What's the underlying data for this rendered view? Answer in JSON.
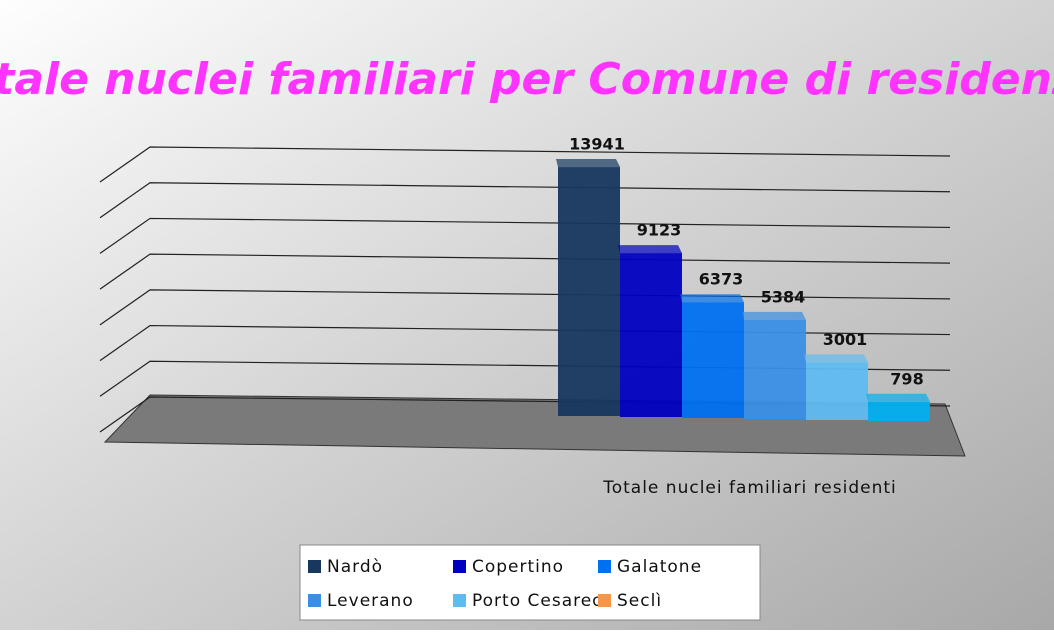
{
  "chart_data": {
    "type": "bar3d",
    "title": "Totale nuclei familiari per Comune di residenza",
    "categories": [
      "Totale nuclei familiari residenti"
    ],
    "series": [
      {
        "name": "Nardò",
        "color": "#17375e",
        "values": [
          13941
        ]
      },
      {
        "name": "Copertino",
        "color": "#0000c0",
        "values": [
          9123
        ]
      },
      {
        "name": "Galatone",
        "color": "#0070f0",
        "values": [
          6373
        ]
      },
      {
        "name": "Leverano",
        "color": "#3a8ee6",
        "values": [
          5384
        ]
      },
      {
        "name": "Porto Cesareo",
        "color": "#5fbcf0",
        "values": [
          3001
        ]
      },
      {
        "name": "Seclì",
        "color": "#00b0f0",
        "legend_color": "#f79646",
        "values": [
          798
        ]
      }
    ],
    "ylim": [
      0,
      14000
    ],
    "yticks": [
      0,
      2000,
      4000,
      6000,
      8000,
      10000,
      12000,
      14000
    ],
    "grid": true,
    "legend": "bottom"
  }
}
